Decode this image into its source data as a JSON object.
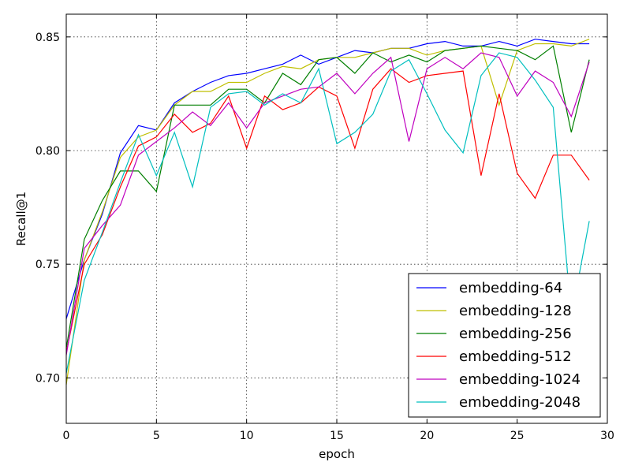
{
  "chart_data": {
    "type": "line",
    "xlabel": "epoch",
    "ylabel": "Recall@1",
    "xlim": [
      0,
      30
    ],
    "ylim": [
      0.68,
      0.86
    ],
    "xticks": [
      0,
      5,
      10,
      15,
      20,
      25,
      30
    ],
    "yticks": [
      0.7,
      0.75,
      0.8,
      0.85
    ],
    "xtick_labels": [
      "0",
      "5",
      "10",
      "15",
      "20",
      "25",
      "30"
    ],
    "ytick_labels": [
      "0.70",
      "0.75",
      "0.80",
      "0.85"
    ],
    "grid": true,
    "legend_position": "lower-right",
    "x": [
      0,
      1,
      2,
      3,
      4,
      5,
      6,
      7,
      8,
      9,
      10,
      11,
      12,
      13,
      14,
      15,
      16,
      17,
      18,
      19,
      20,
      21,
      22,
      23,
      24,
      25,
      26,
      27,
      28,
      29
    ],
    "series": [
      {
        "name": "embedding-64",
        "color": "#0000ff",
        "values": [
          0.726,
          0.752,
          0.772,
          0.799,
          0.811,
          0.809,
          0.821,
          0.826,
          0.83,
          0.833,
          0.834,
          0.836,
          0.838,
          0.842,
          0.838,
          0.841,
          0.844,
          0.843,
          0.845,
          0.845,
          0.847,
          0.848,
          0.846,
          0.846,
          0.848,
          0.846,
          0.849,
          0.848,
          0.847,
          0.847
        ]
      },
      {
        "name": "embedding-128",
        "color": "#bfbf00",
        "values": [
          0.697,
          0.752,
          0.773,
          0.797,
          0.806,
          0.809,
          0.82,
          0.826,
          0.826,
          0.83,
          0.83,
          0.834,
          0.837,
          0.836,
          0.84,
          0.841,
          0.841,
          0.843,
          0.845,
          0.845,
          0.842,
          0.844,
          0.845,
          0.846,
          0.82,
          0.844,
          0.847,
          0.847,
          0.846,
          0.849
        ]
      },
      {
        "name": "embedding-256",
        "color": "#007f00",
        "values": [
          0.713,
          0.761,
          0.778,
          0.791,
          0.791,
          0.782,
          0.82,
          0.82,
          0.82,
          0.827,
          0.827,
          0.821,
          0.834,
          0.829,
          0.84,
          0.841,
          0.834,
          0.843,
          0.839,
          0.842,
          0.839,
          0.844,
          0.845,
          0.846,
          0.845,
          0.844,
          0.84,
          0.846,
          0.808,
          0.84
        ]
      },
      {
        "name": "embedding-512",
        "color": "#ff0000",
        "values": [
          0.711,
          0.75,
          0.763,
          0.784,
          0.802,
          0.806,
          0.816,
          0.808,
          0.812,
          0.824,
          0.801,
          0.824,
          0.818,
          0.821,
          0.828,
          0.824,
          0.801,
          0.827,
          0.836,
          0.83,
          0.833,
          0.834,
          0.835,
          0.789,
          0.825,
          0.79,
          0.779,
          0.798,
          0.798,
          0.787
        ]
      },
      {
        "name": "embedding-1024",
        "color": "#bf00bf",
        "values": [
          0.71,
          0.757,
          0.767,
          0.776,
          0.798,
          0.804,
          0.81,
          0.817,
          0.811,
          0.821,
          0.81,
          0.821,
          0.824,
          0.827,
          0.828,
          0.834,
          0.825,
          0.834,
          0.841,
          0.804,
          0.836,
          0.841,
          0.836,
          0.843,
          0.841,
          0.824,
          0.835,
          0.83,
          0.815,
          0.839
        ]
      },
      {
        "name": "embedding-2048",
        "color": "#00bfbf",
        "values": [
          0.702,
          0.743,
          0.764,
          0.786,
          0.807,
          0.789,
          0.808,
          0.784,
          0.819,
          0.825,
          0.826,
          0.82,
          0.825,
          0.821,
          0.836,
          0.803,
          0.808,
          0.816,
          0.835,
          0.84,
          0.825,
          0.809,
          0.799,
          0.833,
          0.843,
          0.841,
          0.831,
          0.819,
          0.727,
          0.769
        ]
      }
    ]
  }
}
